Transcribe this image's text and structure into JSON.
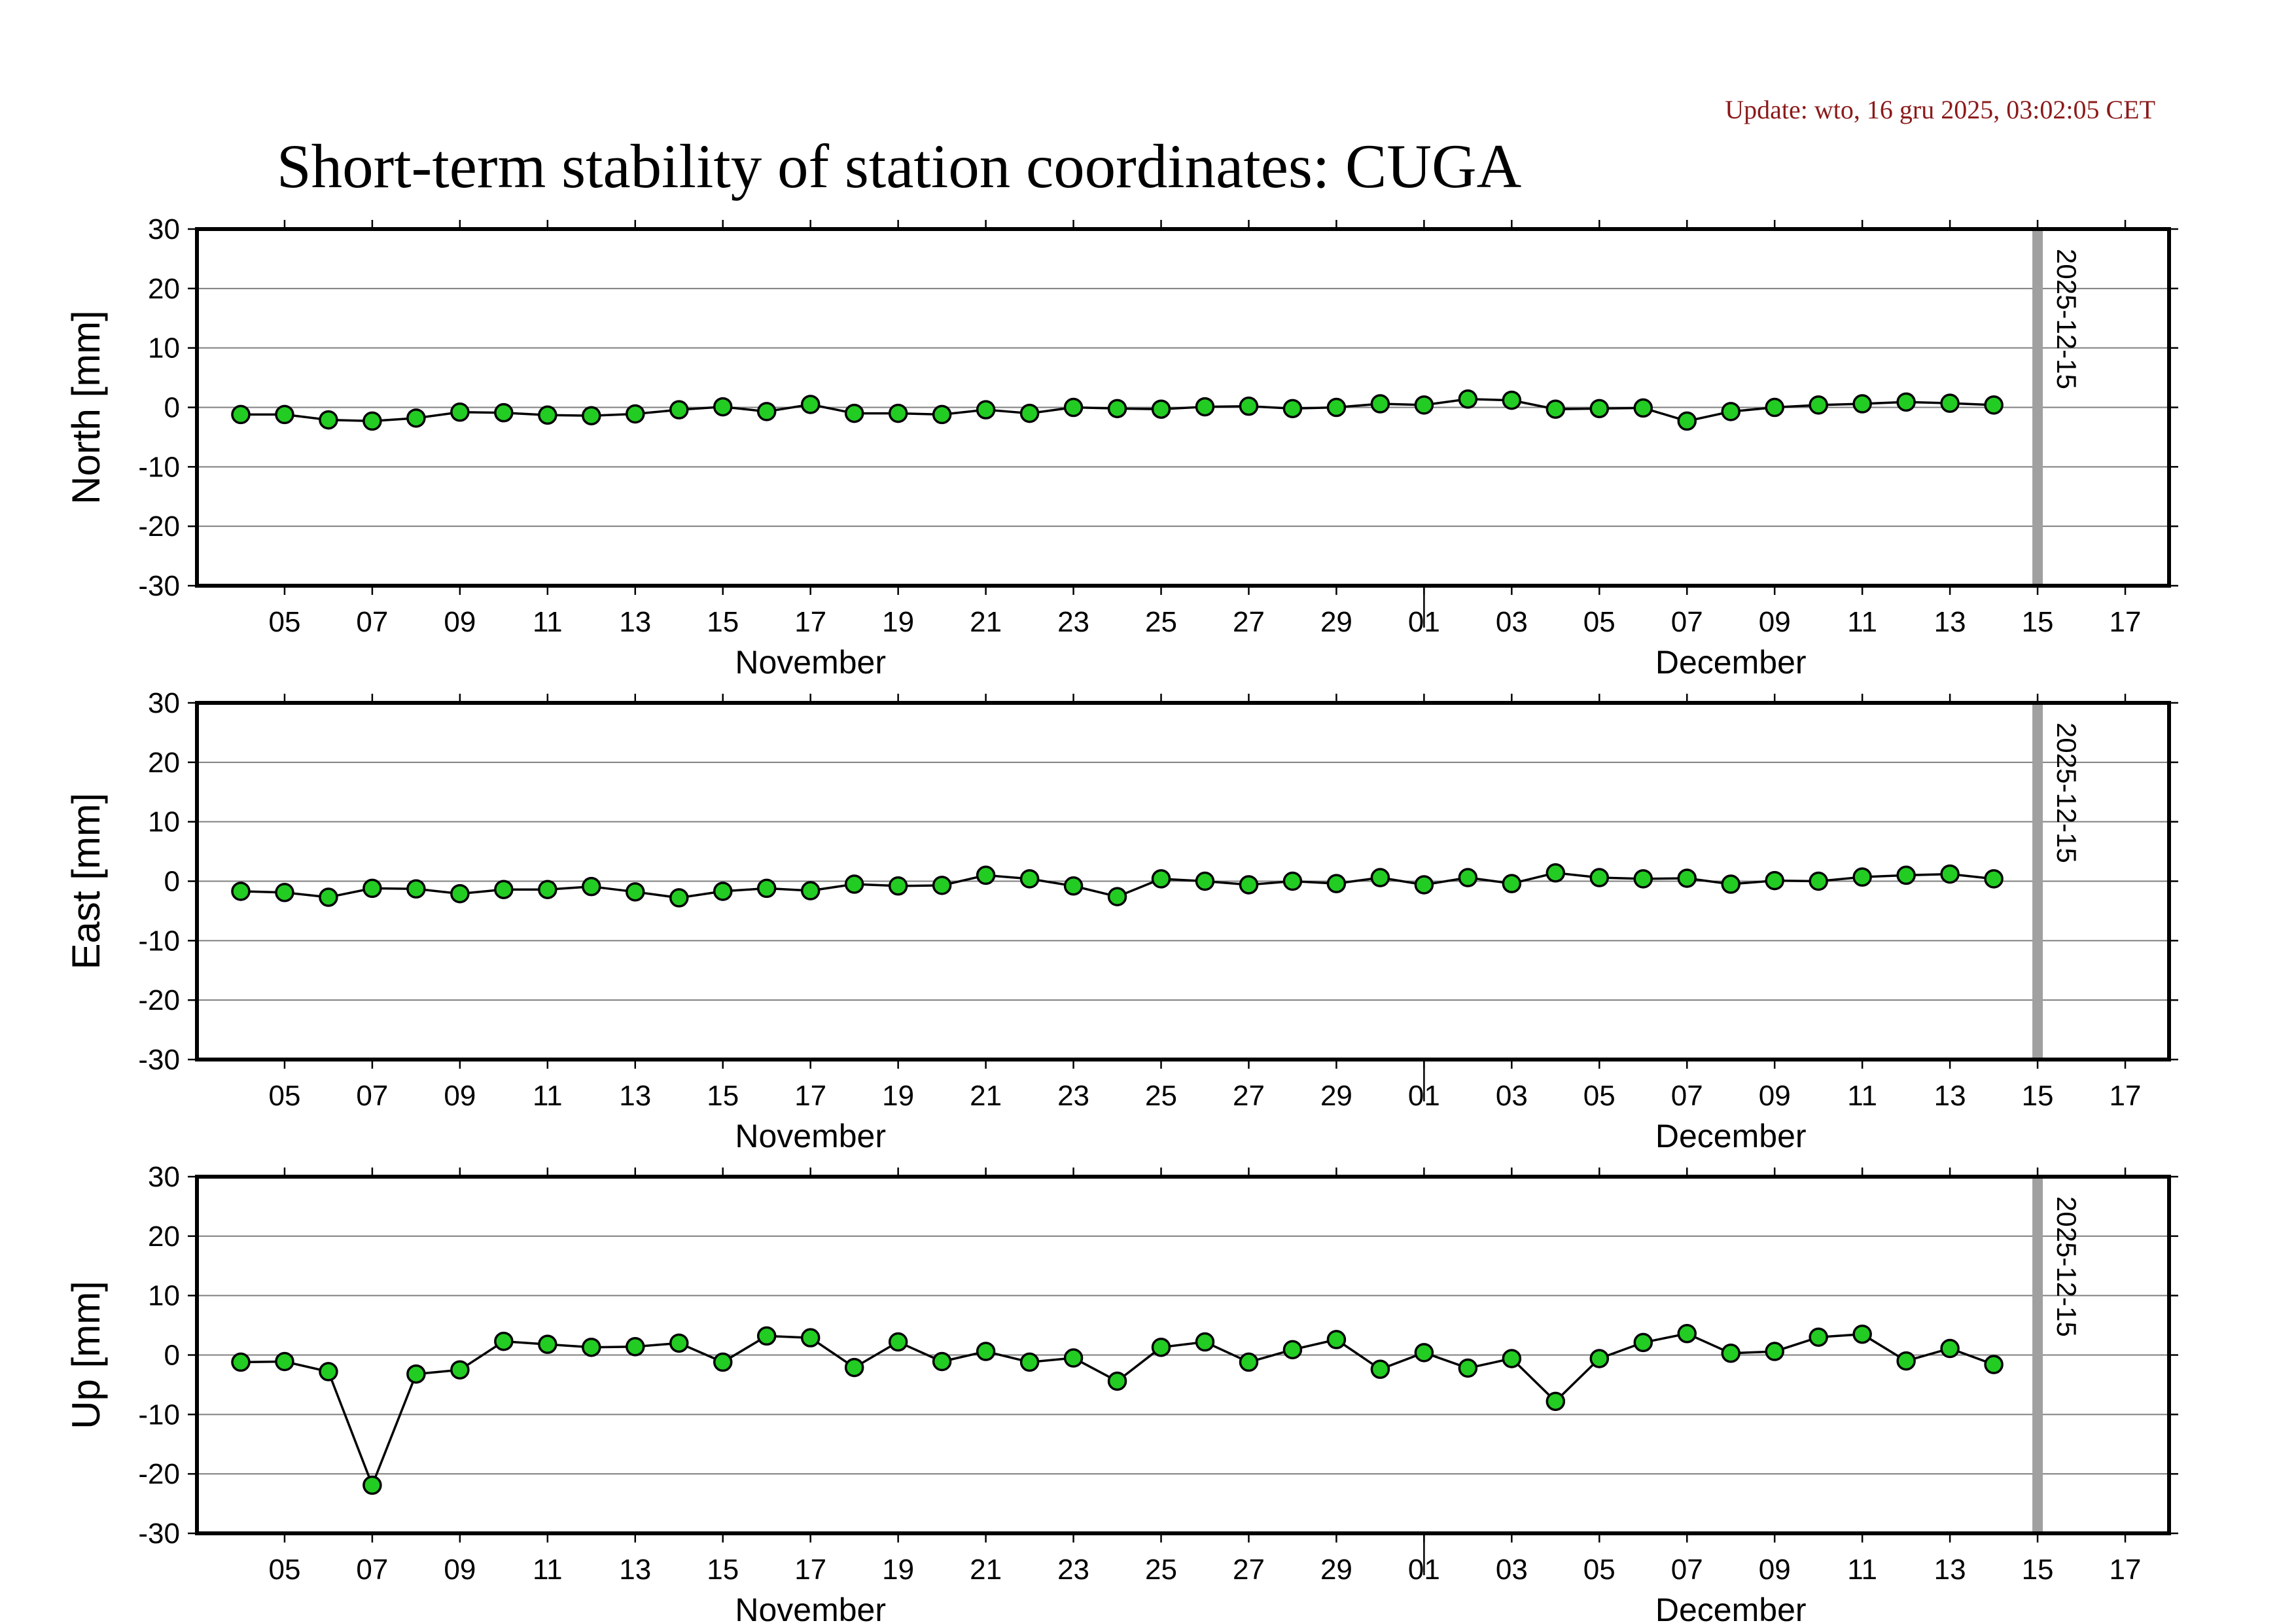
{
  "update_text": "Update: wto, 16 gru 2025, 03:02:05 CET",
  "colors": {
    "update_text": "#8b1a1a",
    "marker_fill": "#22cc22",
    "marker_stroke": "#000000",
    "line": "#000000",
    "grid": "#7f7f7f",
    "today_line": "#a0a0a0"
  },
  "chart_data": {
    "type": "line",
    "title": "Short-term stability of station coordinates: CUGA",
    "x_start": "2025-11-03",
    "x_end": "2025-12-18",
    "marker_line_date": "2025-12-15",
    "marker_line_label": "2025-12-15",
    "x_tick_labels": [
      "05",
      "07",
      "09",
      "11",
      "13",
      "15",
      "17",
      "19",
      "21",
      "23",
      "25",
      "27",
      "29",
      "01",
      "03",
      "05",
      "07",
      "09",
      "11",
      "13",
      "15",
      "17"
    ],
    "month_labels": [
      {
        "label": "November",
        "center_date": "2025-11-17"
      },
      {
        "label": "December",
        "center_date": "2025-12-08"
      }
    ],
    "ylim": [
      -30,
      30
    ],
    "y_tick_labels": [
      "30",
      "20",
      "10",
      "0",
      "-10",
      "-20",
      "-30"
    ],
    "dates": [
      "2025-11-04",
      "2025-11-05",
      "2025-11-06",
      "2025-11-07",
      "2025-11-08",
      "2025-11-09",
      "2025-11-10",
      "2025-11-11",
      "2025-11-12",
      "2025-11-13",
      "2025-11-14",
      "2025-11-15",
      "2025-11-16",
      "2025-11-17",
      "2025-11-18",
      "2025-11-19",
      "2025-11-20",
      "2025-11-21",
      "2025-11-22",
      "2025-11-23",
      "2025-11-24",
      "2025-11-25",
      "2025-11-26",
      "2025-11-27",
      "2025-11-28",
      "2025-11-29",
      "2025-11-30",
      "2025-12-01",
      "2025-12-02",
      "2025-12-03",
      "2025-12-04",
      "2025-12-05",
      "2025-12-06",
      "2025-12-07",
      "2025-12-08",
      "2025-12-09",
      "2025-12-10",
      "2025-12-11",
      "2025-12-12",
      "2025-12-13",
      "2025-12-14"
    ],
    "panels": [
      {
        "ylabel": "North [mm]",
        "values": [
          -1.2,
          -1.2,
          -2.1,
          -2.3,
          -1.8,
          -0.8,
          -0.9,
          -1.3,
          -1.4,
          -1.1,
          -0.4,
          0.1,
          -0.7,
          0.5,
          -1.0,
          -1.0,
          -1.2,
          -0.4,
          -1.0,
          0.0,
          -0.2,
          -0.3,
          0.1,
          0.2,
          -0.2,
          0.0,
          0.6,
          0.4,
          1.4,
          1.2,
          -0.3,
          -0.2,
          -0.1,
          -2.3,
          -0.7,
          0.0,
          0.4,
          0.6,
          0.9,
          0.7,
          0.4
        ]
      },
      {
        "ylabel": "East [mm]",
        "values": [
          -1.7,
          -1.9,
          -2.7,
          -1.2,
          -1.3,
          -2.1,
          -1.4,
          -1.4,
          -0.9,
          -1.8,
          -2.8,
          -1.7,
          -1.2,
          -1.6,
          -0.5,
          -0.8,
          -0.7,
          1.0,
          0.4,
          -0.8,
          -2.6,
          0.4,
          0.0,
          -0.6,
          0.0,
          -0.4,
          0.6,
          -0.6,
          0.6,
          -0.4,
          1.4,
          0.6,
          0.4,
          0.5,
          -0.5,
          0.1,
          0.0,
          0.7,
          1.0,
          1.2,
          0.4
        ]
      },
      {
        "ylabel": "Up [mm]",
        "values": [
          -1.2,
          -1.1,
          -2.8,
          -21.9,
          -3.2,
          -2.5,
          2.3,
          1.8,
          1.3,
          1.4,
          2.0,
          -1.2,
          3.2,
          2.9,
          -2.1,
          2.2,
          -1.1,
          0.6,
          -1.2,
          -0.5,
          -4.4,
          1.3,
          2.2,
          -1.2,
          0.9,
          2.6,
          -2.4,
          0.4,
          -2.2,
          -0.6,
          -7.8,
          -0.6,
          2.1,
          3.6,
          0.3,
          0.6,
          3.0,
          3.5,
          -1.0,
          1.1,
          -1.6
        ]
      }
    ],
    "grid": true
  }
}
